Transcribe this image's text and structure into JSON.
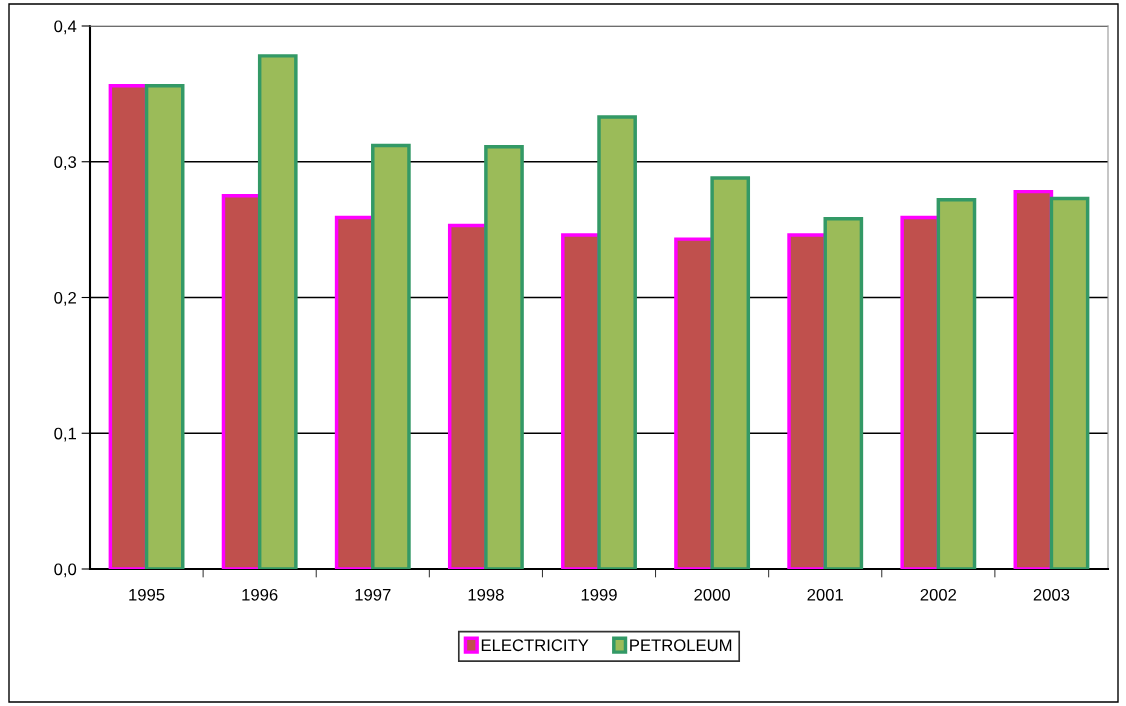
{
  "chart_data": {
    "type": "bar",
    "categories": [
      "1995",
      "1996",
      "1997",
      "1998",
      "1999",
      "2000",
      "2001",
      "2002",
      "2003"
    ],
    "series": [
      {
        "name": "ELECTRICITY",
        "color": "#c0504d",
        "values": [
          0.356,
          0.275,
          0.259,
          0.253,
          0.246,
          0.243,
          0.246,
          0.259,
          0.278
        ]
      },
      {
        "name": "PETROLEUM",
        "color": "#9bbb59",
        "values": [
          0.356,
          0.378,
          0.312,
          0.311,
          0.333,
          0.288,
          0.258,
          0.272,
          0.273
        ]
      }
    ],
    "ylim": [
      0,
      0.4
    ],
    "yticks": [
      {
        "value": 0,
        "label": "0,0"
      },
      {
        "value": 0.1,
        "label": "0,1"
      },
      {
        "value": 0.2,
        "label": "0,2"
      },
      {
        "value": 0.3,
        "label": "0,3"
      },
      {
        "value": 0.4,
        "label": "0,4"
      }
    ],
    "grid": "y",
    "legend": "bottom"
  }
}
